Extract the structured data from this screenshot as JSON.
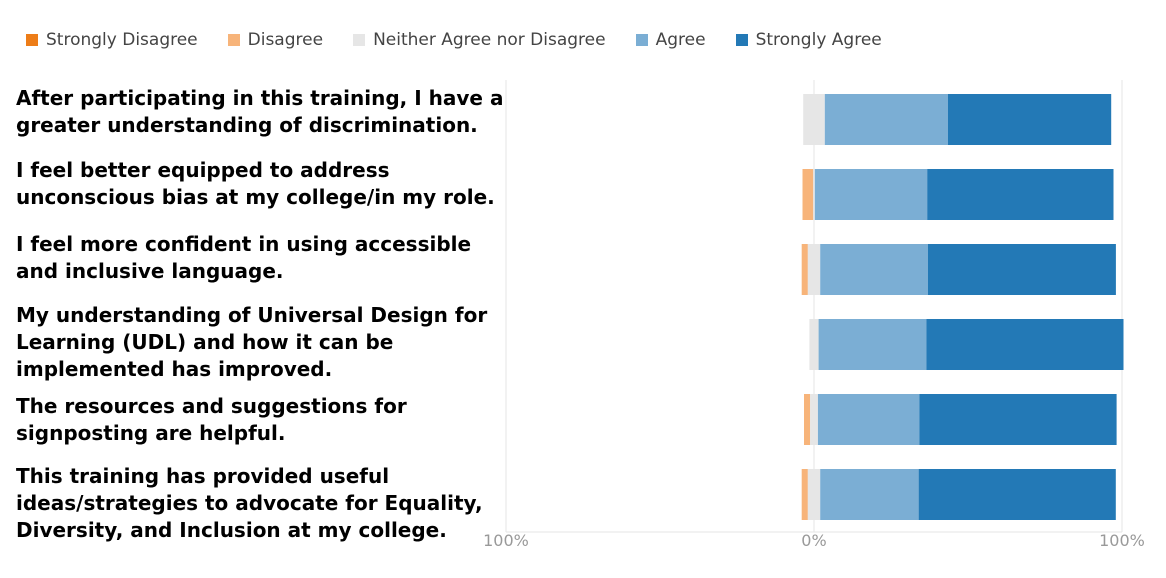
{
  "chart_data": {
    "type": "bar",
    "orientation": "horizontal",
    "stacked": "diverging",
    "legend_position": "top-left",
    "grid": true,
    "xlim": [
      -100,
      100
    ],
    "x_ticks": [
      "100%",
      "0%",
      "100%"
    ],
    "categories": [
      "After participating in this training, I have a greater understanding of discrimination.",
      "I feel better equipped to address unconscious bias at my college/in my role.",
      "I feel more confident in using accessible and inclusive language.",
      "My understanding of Universal Design for Learning (UDL) and how it can be implemented has improved.",
      "The resources and suggestions for signposting are helpful.",
      "This training has provided useful ideas/strategies to advocate for Equality, Diversity, and Inclusion at my college."
    ],
    "series": [
      {
        "name": "Strongly Disagree",
        "color": "#ED7D18",
        "values": [
          0,
          0,
          0,
          0,
          0,
          0
        ]
      },
      {
        "name": "Disagree",
        "color": "#F7B47A",
        "values": [
          0,
          3.5,
          2,
          0,
          2,
          2
        ]
      },
      {
        "name": "Neither Agree nor Disagree",
        "color": "#E6E6E6",
        "values": [
          7,
          0.5,
          4,
          3,
          2.5,
          4
        ]
      },
      {
        "name": "Agree",
        "color": "#7BAED4",
        "values": [
          40,
          36.5,
          35,
          35,
          33,
          32
        ]
      },
      {
        "name": "Strongly Agree",
        "color": "#2379B6",
        "values": [
          53,
          60.5,
          61,
          64,
          64,
          64
        ]
      }
    ]
  }
}
